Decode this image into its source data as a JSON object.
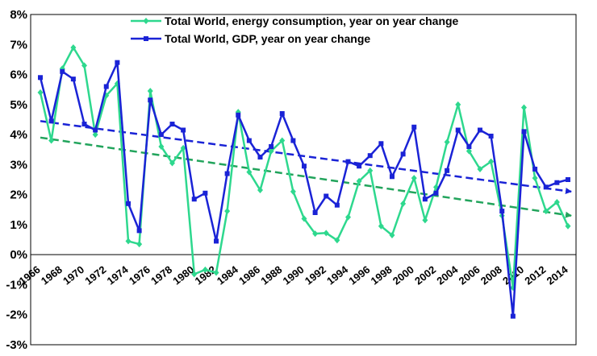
{
  "chart_data": {
    "type": "line",
    "title": "",
    "xlabel": "",
    "ylabel": "",
    "ylim": [
      -3,
      8
    ],
    "yticks": [
      "8%",
      "7%",
      "6%",
      "5%",
      "4%",
      "3%",
      "2%",
      "1%",
      "0%",
      "-1%",
      "-2%",
      "-3%"
    ],
    "xticks": [
      "1966",
      "1968",
      "1970",
      "1972",
      "1974",
      "1976",
      "1978",
      "1980",
      "1982",
      "1984",
      "1986",
      "1988",
      "1990",
      "1992",
      "1994",
      "1996",
      "1998",
      "2000",
      "2002",
      "2004",
      "2006",
      "2008",
      "2010",
      "2012",
      "2014"
    ],
    "x": [
      1966,
      1967,
      1968,
      1969,
      1970,
      1971,
      1972,
      1973,
      1974,
      1975,
      1976,
      1977,
      1978,
      1979,
      1980,
      1981,
      1982,
      1983,
      1984,
      1985,
      1986,
      1987,
      1988,
      1989,
      1990,
      1991,
      1992,
      1993,
      1994,
      1995,
      1996,
      1997,
      1998,
      1999,
      2000,
      2001,
      2002,
      2003,
      2004,
      2005,
      2006,
      2007,
      2008,
      2009,
      2010,
      2011,
      2012,
      2013,
      2014
    ],
    "legend_position": "top-center",
    "grid": false,
    "series": [
      {
        "name": "Total World, energy consumption, year on year change",
        "color": "#2ed88e",
        "marker": "diamond",
        "values": [
          5.4,
          3.8,
          6.2,
          6.9,
          6.3,
          4.0,
          5.3,
          5.7,
          0.45,
          0.35,
          5.45,
          3.6,
          3.05,
          3.55,
          -0.65,
          -0.5,
          -0.6,
          1.45,
          4.75,
          2.75,
          2.15,
          3.45,
          3.8,
          2.1,
          1.2,
          0.7,
          0.72,
          0.48,
          1.25,
          2.45,
          2.8,
          0.95,
          0.65,
          1.7,
          2.55,
          1.15,
          2.25,
          3.75,
          5.0,
          3.45,
          2.85,
          3.1,
          1.3,
          -1.1,
          4.9,
          2.55,
          1.45,
          1.75,
          0.95
        ]
      },
      {
        "name": "Total World, GDP, year on year change",
        "color": "#1a23d6",
        "marker": "square",
        "values": [
          5.9,
          4.45,
          6.1,
          5.85,
          4.35,
          4.15,
          5.6,
          6.4,
          1.7,
          0.8,
          5.15,
          4.0,
          4.35,
          4.15,
          1.85,
          2.05,
          0.45,
          2.7,
          4.65,
          3.8,
          3.25,
          3.6,
          4.7,
          3.8,
          2.95,
          1.4,
          1.95,
          1.65,
          3.1,
          2.95,
          3.3,
          3.7,
          2.6,
          3.35,
          4.25,
          1.85,
          2.05,
          2.8,
          4.15,
          3.6,
          4.15,
          3.95,
          1.45,
          -2.05,
          4.1,
          2.85,
          2.25,
          2.4,
          2.5
        ]
      }
    ],
    "trendlines": [
      {
        "series": "Total World, GDP, year on year change",
        "color": "#1a23d6",
        "from": [
          1966,
          4.45
        ],
        "to": [
          2014,
          2.1
        ]
      },
      {
        "series": "Total World, energy consumption, year on year change",
        "color": "#22a45c",
        "from": [
          1966,
          3.9
        ],
        "to": [
          2014,
          1.3
        ]
      }
    ]
  }
}
